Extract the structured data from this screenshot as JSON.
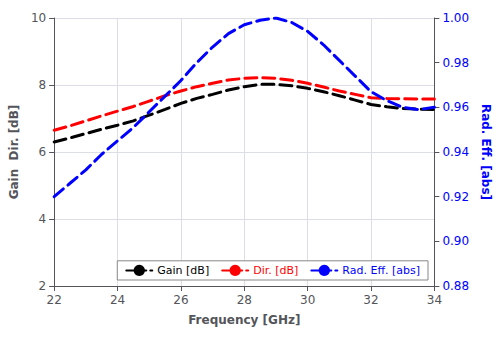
{
  "chart_data": {
    "type": "line",
    "x": [
      22,
      22.5,
      23,
      23.5,
      24,
      24.5,
      25,
      25.5,
      26,
      26.5,
      27,
      27.5,
      28,
      28.5,
      29,
      29.5,
      30,
      30.5,
      31,
      31.5,
      32,
      32.5,
      33,
      33.5,
      34
    ],
    "series": [
      {
        "name": "Gain [dB]",
        "color": "black",
        "values": [
          6.3,
          6.42,
          6.55,
          6.68,
          6.8,
          6.93,
          7.1,
          7.27,
          7.45,
          7.6,
          7.72,
          7.85,
          7.95,
          8.02,
          8.02,
          7.98,
          7.9,
          7.8,
          7.68,
          7.55,
          7.42,
          7.35,
          7.3,
          7.28,
          7.27
        ]
      },
      {
        "name": "Dir. [dB]",
        "color": "red",
        "values": [
          6.65,
          6.78,
          6.93,
          7.08,
          7.22,
          7.36,
          7.52,
          7.68,
          7.82,
          7.95,
          8.05,
          8.15,
          8.2,
          8.22,
          8.2,
          8.14,
          8.05,
          7.94,
          7.82,
          7.72,
          7.62,
          7.6,
          7.59,
          7.58,
          7.58
        ]
      },
      {
        "name": "Rad. Eff. [abs]",
        "color": "blue",
        "axis": "y2",
        "values": [
          0.92,
          0.926,
          0.932,
          0.939,
          0.945,
          0.951,
          0.958,
          0.965,
          0.972,
          0.98,
          0.987,
          0.993,
          0.997,
          0.999,
          1.0,
          0.998,
          0.994,
          0.988,
          0.981,
          0.974,
          0.967,
          0.963,
          0.96,
          0.959,
          0.96
        ]
      }
    ],
    "xlabel": "Frequency [GHz]",
    "ylabel": "Gain  Dir. [dB]",
    "y2label": "Rad. Eff. [abs]",
    "xlim": [
      22,
      34
    ],
    "xticks": [
      22,
      24,
      26,
      28,
      30,
      32,
      34
    ],
    "ylim": [
      2,
      10
    ],
    "yticks": [
      2,
      4,
      6,
      8,
      10
    ],
    "y2lim": [
      0.88,
      1.0
    ],
    "y2ticks": [
      0.88,
      {
        "value": 0.9,
        "label": "0.90"
      },
      0.92,
      0.94,
      0.96,
      0.98,
      {
        "value": 1,
        "label": "1.00"
      }
    ],
    "grid": true,
    "legend": "lower right",
    "line_style": "dashed"
  }
}
